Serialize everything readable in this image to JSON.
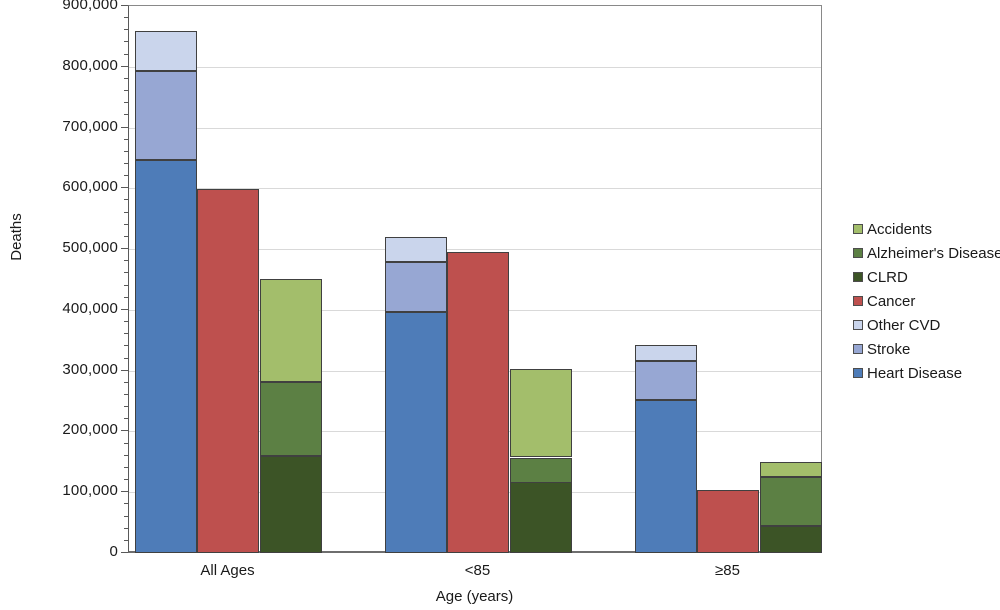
{
  "chart_data": {
    "type": "bar",
    "variant": "grouped-stacked",
    "title": "",
    "xlabel": "Age (years)",
    "ylabel": "Deaths",
    "categories": [
      "All Ages",
      "<85",
      "≥85"
    ],
    "ylim": [
      0,
      900000
    ],
    "ytick_interval": 100000,
    "y_minor_tick_interval": 20000,
    "ytick_labels": [
      "0",
      "100,000",
      "200,000",
      "300,000",
      "400,000",
      "500,000",
      "600,000",
      "700,000",
      "800,000",
      "900,000"
    ],
    "grid": "horizontal-major",
    "legend_position": "right",
    "legend_order": [
      "Accidents",
      "Alzheimer's Disease",
      "CLRD",
      "Cancer",
      "Other CVD",
      "Stroke",
      "Heart Disease"
    ],
    "bars_per_category": [
      {
        "name": "cvd-stack",
        "series": [
          "Heart Disease",
          "Stroke",
          "Other CVD"
        ]
      },
      {
        "name": "cancer-bar",
        "series": [
          "Cancer"
        ]
      },
      {
        "name": "other-causes-stack",
        "series": [
          "CLRD",
          "Alzheimer's Disease",
          "Accidents"
        ]
      }
    ],
    "series": [
      {
        "name": "Heart Disease",
        "color": "#4E7CB8",
        "values": [
          647000,
          396000,
          252000
        ]
      },
      {
        "name": "Stroke",
        "color": "#97A7D3",
        "values": [
          146000,
          83000,
          64000
        ]
      },
      {
        "name": "Other CVD",
        "color": "#CAD5EC",
        "values": [
          66000,
          41000,
          26000
        ]
      },
      {
        "name": "Cancer",
        "color": "#BE504E",
        "values": [
          599000,
          496000,
          103000
        ]
      },
      {
        "name": "CLRD",
        "color": "#3C5426",
        "values": [
          160000,
          116000,
          45000
        ]
      },
      {
        "name": "Alzheimer's Disease",
        "color": "#5C8044",
        "values": [
          121000,
          41000,
          80000
        ]
      },
      {
        "name": "Accidents",
        "color": "#A3BE6B",
        "values": [
          170000,
          145000,
          25000
        ]
      }
    ],
    "colors": {
      "background": "#FFFFFF",
      "axis_line": "#595959",
      "plot_border": "#898989",
      "gridline": "#D9D9D9",
      "bar_border": "#404040",
      "text": "#1A1A1A"
    }
  }
}
